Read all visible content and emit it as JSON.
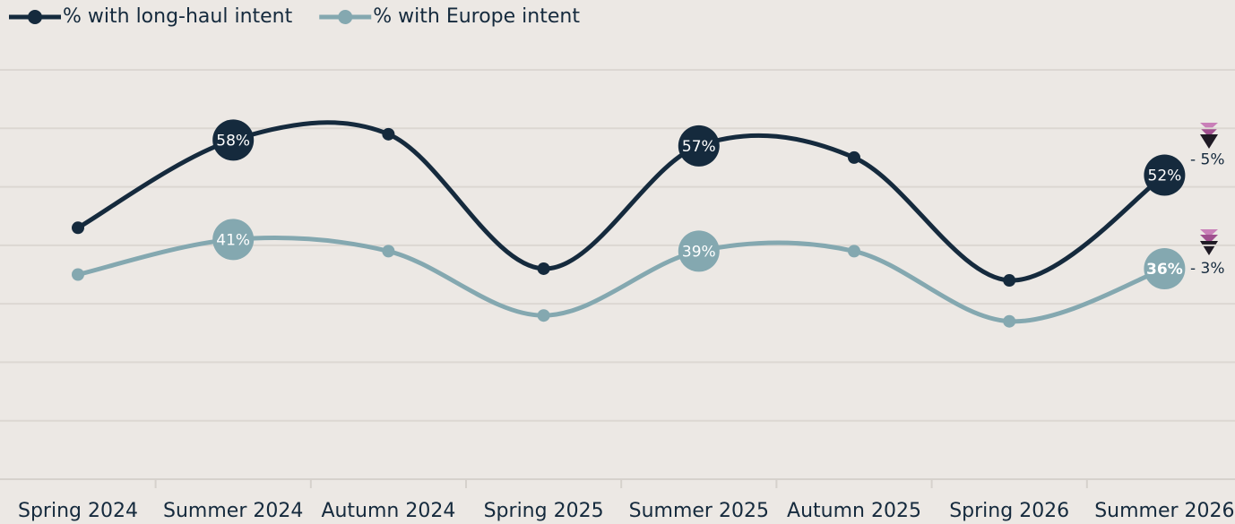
{
  "chart_data": {
    "type": "line",
    "categories": [
      "Spring 2024",
      "Summer 2024",
      "Autumn 2024",
      "Spring 2025",
      "Summer 2025",
      "Autumn 2025",
      "Spring 2026",
      "Summer 2026"
    ],
    "series": [
      {
        "name": "% with long-haul intent",
        "color": "#152a3d",
        "values": [
          43,
          58,
          59,
          36,
          57,
          55,
          34,
          52
        ],
        "value_labels": [
          null,
          "58%",
          null,
          null,
          "57%",
          null,
          null,
          "52%"
        ],
        "change_label": "- 5%"
      },
      {
        "name": "% with Europe intent",
        "color": "#84a8b0",
        "values": [
          35,
          41,
          39,
          28,
          39,
          39,
          27,
          36
        ],
        "value_labels": [
          null,
          "41%",
          null,
          null,
          "39%",
          null,
          null,
          "36%"
        ],
        "change_label": "- 3%"
      }
    ],
    "ylim": [
      0,
      70
    ],
    "yticks": [
      0,
      10,
      20,
      30,
      40,
      50,
      60,
      70
    ],
    "grid": true
  }
}
